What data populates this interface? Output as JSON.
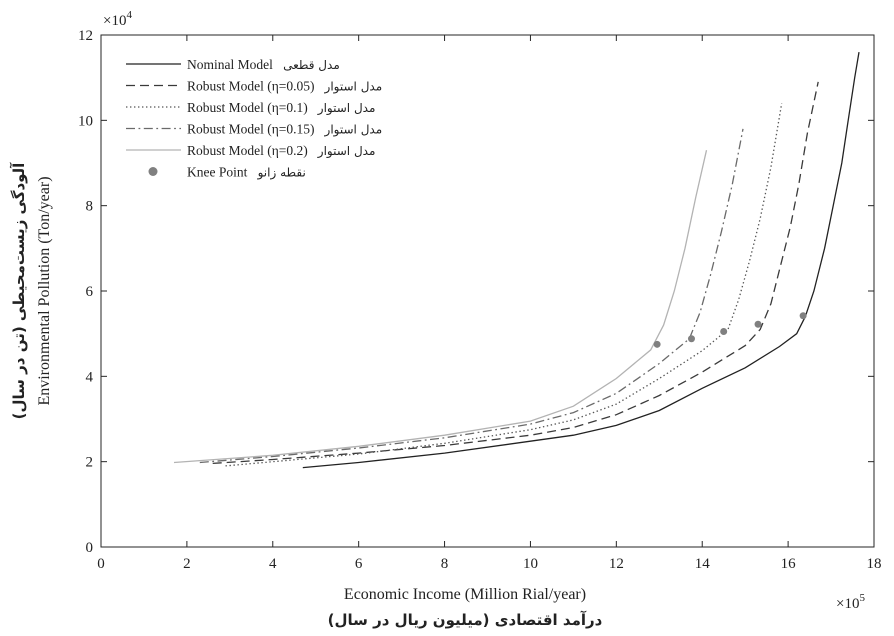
{
  "chart_data": {
    "type": "line",
    "xlabel": "Economic Income (Million Rial/year)",
    "xlabel_fa": "درآمد اقتصادی (میلیون ریال در سال)",
    "ylabel": "Environmental Pollution (Ton/year)",
    "ylabel_fa": "آلودگی زیست‌محیطی (تن در سال)",
    "x_exponent": "×10",
    "x_exponent_power": "5",
    "y_exponent": "×10",
    "y_exponent_power": "4",
    "xlim": [
      0,
      18
    ],
    "ylim": [
      0,
      12
    ],
    "xticks": [
      0,
      2,
      4,
      6,
      8,
      10,
      12,
      14,
      16,
      18
    ],
    "yticks": [
      0,
      2,
      4,
      6,
      8,
      10,
      12
    ],
    "grid": false,
    "legend_position": "top-left",
    "series": [
      {
        "name": "Nominal Model",
        "name_fa": "مدل قطعی",
        "style": "solid",
        "color": "#222222",
        "points": [
          [
            4.7,
            1.86
          ],
          [
            6,
            1.98
          ],
          [
            8,
            2.2
          ],
          [
            10,
            2.48
          ],
          [
            11,
            2.62
          ],
          [
            12,
            2.85
          ],
          [
            13,
            3.2
          ],
          [
            14,
            3.72
          ],
          [
            15,
            4.2
          ],
          [
            15.8,
            4.7
          ],
          [
            16.2,
            5.0
          ],
          [
            16.4,
            5.4
          ],
          [
            16.6,
            6.0
          ],
          [
            16.85,
            7.0
          ],
          [
            17.05,
            8.0
          ],
          [
            17.25,
            9.0
          ],
          [
            17.4,
            10.0
          ],
          [
            17.55,
            11.0
          ],
          [
            17.65,
            11.6
          ]
        ],
        "knee": [
          16.35,
          5.42
        ]
      },
      {
        "name": "Robust Model (η=0.05)",
        "name_fa": "مدل استوار",
        "style": "dash",
        "color": "#3a3a3a",
        "points": [
          [
            2.6,
            1.96
          ],
          [
            4,
            2.05
          ],
          [
            6,
            2.2
          ],
          [
            8,
            2.38
          ],
          [
            10,
            2.62
          ],
          [
            11,
            2.8
          ],
          [
            12,
            3.1
          ],
          [
            13,
            3.55
          ],
          [
            14,
            4.1
          ],
          [
            15,
            4.72
          ],
          [
            15.35,
            5.1
          ],
          [
            15.6,
            5.7
          ],
          [
            15.8,
            6.5
          ],
          [
            16.05,
            7.5
          ],
          [
            16.25,
            8.5
          ],
          [
            16.45,
            9.7
          ],
          [
            16.7,
            10.9
          ]
        ],
        "knee": [
          15.3,
          5.22
        ]
      },
      {
        "name": "Robust Model (η=0.1)",
        "name_fa": "مدل استوار",
        "style": "dot",
        "color": "#555555",
        "points": [
          [
            2.9,
            1.9
          ],
          [
            4,
            2.0
          ],
          [
            6,
            2.18
          ],
          [
            8,
            2.43
          ],
          [
            10,
            2.75
          ],
          [
            11,
            2.98
          ],
          [
            12,
            3.35
          ],
          [
            13,
            3.95
          ],
          [
            14,
            4.6
          ],
          [
            14.6,
            5.1
          ],
          [
            14.85,
            5.8
          ],
          [
            15.1,
            6.7
          ],
          [
            15.35,
            7.7
          ],
          [
            15.6,
            8.9
          ],
          [
            15.85,
            10.4
          ]
        ],
        "knee": [
          14.5,
          5.05
        ]
      },
      {
        "name": "Robust Model (η=0.15)",
        "name_fa": "مدل استوار",
        "style": "dashdot",
        "color": "#6a6a6a",
        "points": [
          [
            2.3,
            1.98
          ],
          [
            4,
            2.12
          ],
          [
            6,
            2.32
          ],
          [
            8,
            2.56
          ],
          [
            10,
            2.88
          ],
          [
            11,
            3.15
          ],
          [
            12,
            3.6
          ],
          [
            13,
            4.3
          ],
          [
            13.7,
            4.88
          ],
          [
            13.95,
            5.5
          ],
          [
            14.2,
            6.4
          ],
          [
            14.45,
            7.4
          ],
          [
            14.7,
            8.5
          ],
          [
            14.95,
            9.8
          ]
        ],
        "knee": [
          13.75,
          4.88
        ]
      },
      {
        "name": "Robust Model (η=0.2)",
        "name_fa": "مدل استوار",
        "style": "solid",
        "color": "#b3b3b3",
        "points": [
          [
            1.7,
            1.98
          ],
          [
            4,
            2.15
          ],
          [
            6,
            2.36
          ],
          [
            8,
            2.62
          ],
          [
            10,
            2.95
          ],
          [
            11,
            3.3
          ],
          [
            12,
            3.95
          ],
          [
            12.8,
            4.62
          ],
          [
            13.1,
            5.2
          ],
          [
            13.35,
            6.0
          ],
          [
            13.6,
            7.0
          ],
          [
            13.85,
            8.2
          ],
          [
            14.1,
            9.3
          ]
        ],
        "knee": [
          12.95,
          4.75
        ]
      }
    ],
    "knee_point_label": "Knee Point",
    "knee_point_label_fa": "نقطه زانو",
    "knee_point_color": "#808080"
  }
}
